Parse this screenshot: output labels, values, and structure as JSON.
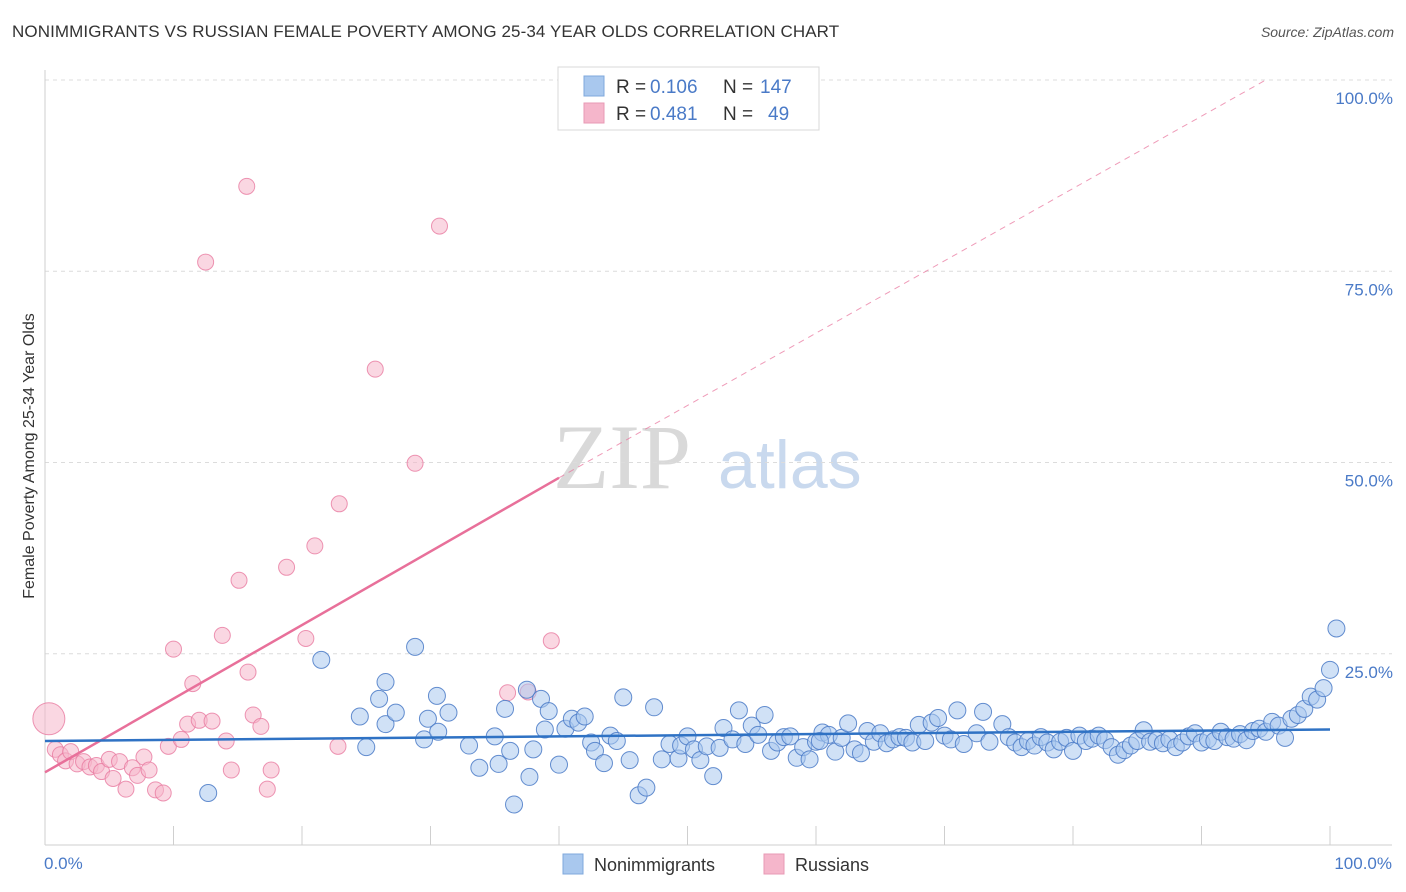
{
  "title": "NONIMMIGRANTS VS RUSSIAN FEMALE POVERTY AMONG 25-34 YEAR OLDS CORRELATION CHART",
  "source": "Source: ZipAtlas.com",
  "watermark": {
    "zip": "ZIP",
    "atlas": "atlas"
  },
  "colors": {
    "blue": "#4a7ac7",
    "blue_fill": "#a9c8ee",
    "blue_line": "#2f72c4",
    "pink": "#e87aa0",
    "pink_fill": "#f5b6cb",
    "pink_line": "#e8709a",
    "grid": "#dcdcdc"
  },
  "legend": {
    "rows": [
      {
        "r_label": "R =",
        "r_value": "0.106",
        "n_label": "N =",
        "n_value": "147",
        "swatch": "blue"
      },
      {
        "r_label": "R =",
        "r_value": "0.481",
        "n_label": "N =",
        "n_value": "49",
        "swatch": "pink"
      }
    ]
  },
  "bottom_legend": [
    "Nonimmigrants",
    "Russians"
  ],
  "chart_data": {
    "type": "scatter",
    "xlabel": "",
    "ylabel": "Female Poverty Among 25-34 Year Olds",
    "xlim": [
      0,
      100
    ],
    "ylim": [
      0,
      100
    ],
    "x_tick_labels": [
      "0.0%",
      "100.0%"
    ],
    "y_tick_labels": [
      "25.0%",
      "50.0%",
      "75.0%",
      "100.0%"
    ],
    "y_ticks": [
      25,
      50,
      75,
      100
    ],
    "grid": true,
    "series": [
      {
        "name": "Nonimmigrants",
        "color": "blue",
        "trend": {
          "x": [
            0,
            100
          ],
          "y": [
            13.6,
            15.1
          ]
        },
        "points": [
          [
            12.7,
            6.8
          ],
          [
            21.5,
            24.2
          ],
          [
            24.5,
            16.8
          ],
          [
            25.0,
            12.8
          ],
          [
            26.0,
            19.1
          ],
          [
            26.5,
            21.3
          ],
          [
            26.5,
            15.8
          ],
          [
            27.3,
            17.3
          ],
          [
            28.8,
            25.9
          ],
          [
            29.5,
            13.8
          ],
          [
            29.8,
            16.5
          ],
          [
            30.5,
            19.5
          ],
          [
            30.6,
            14.8
          ],
          [
            31.4,
            17.3
          ],
          [
            33.0,
            13.0
          ],
          [
            33.8,
            10.1
          ],
          [
            35.0,
            14.2
          ],
          [
            35.3,
            10.6
          ],
          [
            35.8,
            17.8
          ],
          [
            36.2,
            12.3
          ],
          [
            36.5,
            5.3
          ],
          [
            37.5,
            20.3
          ],
          [
            37.7,
            8.9
          ],
          [
            38.0,
            12.5
          ],
          [
            38.6,
            19.1
          ],
          [
            38.9,
            15.1
          ],
          [
            39.2,
            17.5
          ],
          [
            40.0,
            10.5
          ],
          [
            40.5,
            15.2
          ],
          [
            41.0,
            16.5
          ],
          [
            41.5,
            16.0
          ],
          [
            42.0,
            16.8
          ],
          [
            42.5,
            13.4
          ],
          [
            42.8,
            12.3
          ],
          [
            43.5,
            10.7
          ],
          [
            44.0,
            14.3
          ],
          [
            44.5,
            13.6
          ],
          [
            45.0,
            19.3
          ],
          [
            45.5,
            11.1
          ],
          [
            46.2,
            6.5
          ],
          [
            46.8,
            7.5
          ],
          [
            47.4,
            18.0
          ],
          [
            48.0,
            11.2
          ],
          [
            48.6,
            13.2
          ],
          [
            49.3,
            11.3
          ],
          [
            49.5,
            13.0
          ],
          [
            50.0,
            14.2
          ],
          [
            50.5,
            12.5
          ],
          [
            51.0,
            11.1
          ],
          [
            51.5,
            12.9
          ],
          [
            52.0,
            9.0
          ],
          [
            52.5,
            12.7
          ],
          [
            52.8,
            15.3
          ],
          [
            53.5,
            13.8
          ],
          [
            54.0,
            17.6
          ],
          [
            54.5,
            13.2
          ],
          [
            55.0,
            15.6
          ],
          [
            55.5,
            14.4
          ],
          [
            56.0,
            17.0
          ],
          [
            56.5,
            12.3
          ],
          [
            57.0,
            13.4
          ],
          [
            57.5,
            14.1
          ],
          [
            58.0,
            14.2
          ],
          [
            58.5,
            11.4
          ],
          [
            59.0,
            12.8
          ],
          [
            59.5,
            11.2
          ],
          [
            60.0,
            13.5
          ],
          [
            60.5,
            14.7
          ],
          [
            61.0,
            14.4
          ],
          [
            61.5,
            12.2
          ],
          [
            62.0,
            14.0
          ],
          [
            62.5,
            15.9
          ],
          [
            63.0,
            12.5
          ],
          [
            63.5,
            12.0
          ],
          [
            64.0,
            14.9
          ],
          [
            64.5,
            13.5
          ],
          [
            65.0,
            14.6
          ],
          [
            65.5,
            13.3
          ],
          [
            66.0,
            13.8
          ],
          [
            66.5,
            14.1
          ],
          [
            67.0,
            14.0
          ],
          [
            67.5,
            13.4
          ],
          [
            68.0,
            15.7
          ],
          [
            68.5,
            13.6
          ],
          [
            69.0,
            16.0
          ],
          [
            69.5,
            16.6
          ],
          [
            70.0,
            14.3
          ],
          [
            70.5,
            13.8
          ],
          [
            71.0,
            17.6
          ],
          [
            71.5,
            13.2
          ],
          [
            72.5,
            14.6
          ],
          [
            73.0,
            17.4
          ],
          [
            73.5,
            13.5
          ],
          [
            74.5,
            15.8
          ],
          [
            75.0,
            14.1
          ],
          [
            75.5,
            13.4
          ],
          [
            76.0,
            12.8
          ],
          [
            76.5,
            13.6
          ],
          [
            77.0,
            13.0
          ],
          [
            77.5,
            14.1
          ],
          [
            78.0,
            13.4
          ],
          [
            78.5,
            12.5
          ],
          [
            79.0,
            13.5
          ],
          [
            79.5,
            14.0
          ],
          [
            80.0,
            12.3
          ],
          [
            80.5,
            14.3
          ],
          [
            81.0,
            13.6
          ],
          [
            81.5,
            13.9
          ],
          [
            82.0,
            14.3
          ],
          [
            82.5,
            13.7
          ],
          [
            83.0,
            12.8
          ],
          [
            83.5,
            11.8
          ],
          [
            84.0,
            12.4
          ],
          [
            84.5,
            13.0
          ],
          [
            85.0,
            13.6
          ],
          [
            85.5,
            15.0
          ],
          [
            86.0,
            13.5
          ],
          [
            86.5,
            13.7
          ],
          [
            87.0,
            13.3
          ],
          [
            87.5,
            13.8
          ],
          [
            88.0,
            12.8
          ],
          [
            88.5,
            13.4
          ],
          [
            89.0,
            14.2
          ],
          [
            89.5,
            14.6
          ],
          [
            90.0,
            13.4
          ],
          [
            90.5,
            13.8
          ],
          [
            91.0,
            13.6
          ],
          [
            91.5,
            14.8
          ],
          [
            92.0,
            14.1
          ],
          [
            92.5,
            13.9
          ],
          [
            93.0,
            14.5
          ],
          [
            93.5,
            13.7
          ],
          [
            94.0,
            14.9
          ],
          [
            94.5,
            15.2
          ],
          [
            95.0,
            14.8
          ],
          [
            95.5,
            16.1
          ],
          [
            96.0,
            15.6
          ],
          [
            96.5,
            14.0
          ],
          [
            97.0,
            16.5
          ],
          [
            97.5,
            17.0
          ],
          [
            98.0,
            17.8
          ],
          [
            98.5,
            19.4
          ],
          [
            99.0,
            19.0
          ],
          [
            99.5,
            20.5
          ],
          [
            100.0,
            22.9
          ],
          [
            100.5,
            28.3
          ],
          [
            60.3,
            13.6
          ]
        ]
      },
      {
        "name": "Russians",
        "color": "pink",
        "trend": {
          "x": [
            0,
            40
          ],
          "y": [
            9.5,
            48.0
          ]
        },
        "trend_dashed": {
          "x": [
            40,
            95
          ],
          "y": [
            48.0,
            100.0
          ]
        },
        "points": [
          [
            0.3,
            16.5
          ],
          [
            0.8,
            12.5
          ],
          [
            1.2,
            11.8
          ],
          [
            1.6,
            11.0
          ],
          [
            2.0,
            12.2
          ],
          [
            2.5,
            10.6
          ],
          [
            3.0,
            10.9
          ],
          [
            3.5,
            10.2
          ],
          [
            4.0,
            10.4
          ],
          [
            4.4,
            9.6
          ],
          [
            5.0,
            11.2
          ],
          [
            5.3,
            8.7
          ],
          [
            5.8,
            10.9
          ],
          [
            6.3,
            7.3
          ],
          [
            6.8,
            10.1
          ],
          [
            7.2,
            9.1
          ],
          [
            7.7,
            11.5
          ],
          [
            8.1,
            9.8
          ],
          [
            8.6,
            7.2
          ],
          [
            9.2,
            6.8
          ],
          [
            9.6,
            12.9
          ],
          [
            10.0,
            25.6
          ],
          [
            10.6,
            13.8
          ],
          [
            11.1,
            15.8
          ],
          [
            11.5,
            21.1
          ],
          [
            12.0,
            16.3
          ],
          [
            12.5,
            76.2
          ],
          [
            13.0,
            16.2
          ],
          [
            13.8,
            27.4
          ],
          [
            14.1,
            13.6
          ],
          [
            14.5,
            9.8
          ],
          [
            15.1,
            34.6
          ],
          [
            15.7,
            86.1
          ],
          [
            15.8,
            22.6
          ],
          [
            16.2,
            17.0
          ],
          [
            16.8,
            15.5
          ],
          [
            17.3,
            7.3
          ],
          [
            17.6,
            9.8
          ],
          [
            18.8,
            36.3
          ],
          [
            20.3,
            27.0
          ],
          [
            21.0,
            39.1
          ],
          [
            22.8,
            12.9
          ],
          [
            22.9,
            44.6
          ],
          [
            25.7,
            62.2
          ],
          [
            28.8,
            49.9
          ],
          [
            30.7,
            80.9
          ],
          [
            36.0,
            19.9
          ],
          [
            37.6,
            20.0
          ],
          [
            39.4,
            26.7
          ]
        ]
      }
    ]
  }
}
